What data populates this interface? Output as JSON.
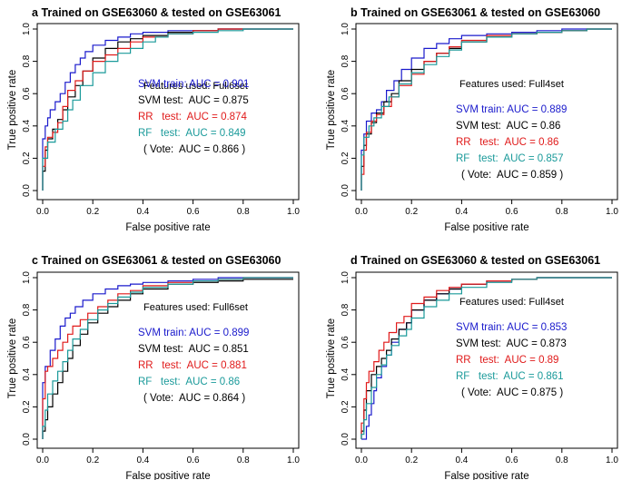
{
  "colors": {
    "svm_train": "#1a1acc",
    "svm_test": "#000000",
    "rr": "#e01a1a",
    "rf": "#1a9a9a",
    "vote": "#000000",
    "axis": "#000000"
  },
  "chart_data": [
    {
      "type": "line",
      "panel_label": "a",
      "title": "Trained on GSE63060 & tested on GSE63061",
      "xlabel": "False positive rate",
      "ylabel": "True positive rate",
      "xlim": [
        0,
        1
      ],
      "ylim": [
        0,
        1
      ],
      "ticks": [
        "0.0",
        "0.2",
        "0.4",
        "0.6",
        "0.8",
        "1.0"
      ],
      "features_text": "Features used: Full6set",
      "legend": [
        {
          "label": "SVM train: AUC = 0.901",
          "color": "svm_train"
        },
        {
          "label": "SVM test:  AUC = 0.875",
          "color": "svm_test"
        },
        {
          "label": "RR   test:  AUC = 0.874",
          "color": "rr"
        },
        {
          "label": "RF   test:  AUC = 0.849",
          "color": "rf"
        },
        {
          "label": "( Vote:  AUC = 0.866 )",
          "color": "vote"
        }
      ],
      "series": [
        {
          "name": "SVM train",
          "color": "svm_train",
          "x": [
            0,
            0,
            0.01,
            0.02,
            0.03,
            0.05,
            0.07,
            0.09,
            0.11,
            0.13,
            0.15,
            0.17,
            0.2,
            0.25,
            0.3,
            0.35,
            0.4,
            0.5,
            0.6,
            0.7,
            0.85,
            1
          ],
          "y": [
            0,
            0.2,
            0.32,
            0.4,
            0.45,
            0.5,
            0.55,
            0.6,
            0.67,
            0.73,
            0.78,
            0.82,
            0.86,
            0.9,
            0.93,
            0.95,
            0.97,
            0.98,
            0.99,
            0.99,
            1,
            1
          ]
        },
        {
          "name": "SVM test",
          "color": "svm_test",
          "x": [
            0,
            0.01,
            0.02,
            0.04,
            0.06,
            0.08,
            0.1,
            0.13,
            0.16,
            0.2,
            0.25,
            0.3,
            0.35,
            0.4,
            0.5,
            0.6,
            0.7,
            0.8,
            1
          ],
          "y": [
            0,
            0.12,
            0.25,
            0.32,
            0.38,
            0.44,
            0.5,
            0.58,
            0.65,
            0.74,
            0.82,
            0.88,
            0.92,
            0.94,
            0.96,
            0.98,
            0.99,
            1,
            1
          ]
        },
        {
          "name": "RR test",
          "color": "rr",
          "x": [
            0,
            0.01,
            0.02,
            0.04,
            0.06,
            0.08,
            0.1,
            0.13,
            0.16,
            0.2,
            0.25,
            0.3,
            0.35,
            0.4,
            0.5,
            0.6,
            0.7,
            0.8,
            1
          ],
          "y": [
            0,
            0.15,
            0.27,
            0.33,
            0.36,
            0.42,
            0.52,
            0.62,
            0.68,
            0.74,
            0.8,
            0.84,
            0.88,
            0.92,
            0.95,
            0.97,
            0.99,
            1,
            1
          ]
        },
        {
          "name": "RF test",
          "color": "rf",
          "x": [
            0,
            0,
            0.02,
            0.05,
            0.08,
            0.1,
            0.12,
            0.15,
            0.2,
            0.25,
            0.3,
            0.35,
            0.4,
            0.45,
            0.5,
            0.6,
            0.7,
            0.8,
            0.9,
            1
          ],
          "y": [
            0,
            0.05,
            0.2,
            0.3,
            0.38,
            0.43,
            0.5,
            0.56,
            0.65,
            0.73,
            0.8,
            0.85,
            0.88,
            0.92,
            0.95,
            0.97,
            0.98,
            0.99,
            1,
            1
          ]
        }
      ]
    },
    {
      "type": "line",
      "panel_label": "b",
      "title": "Trained on GSE63061 & tested on GSE63060",
      "xlabel": "False positive rate",
      "ylabel": "True positive rate",
      "xlim": [
        0,
        1
      ],
      "ylim": [
        0,
        1
      ],
      "ticks": [
        "0.0",
        "0.2",
        "0.4",
        "0.6",
        "0.8",
        "1.0"
      ],
      "features_text": "Features used: Full4set",
      "legend": [
        {
          "label": "SVM train: AUC = 0.889",
          "color": "svm_train"
        },
        {
          "label": "SVM test:  AUC = 0.86",
          "color": "svm_test"
        },
        {
          "label": "RR   test:  AUC = 0.86",
          "color": "rr"
        },
        {
          "label": "RF   test:  AUC = 0.857",
          "color": "rf"
        },
        {
          "label": "( Vote:  AUC = 0.859 )",
          "color": "vote"
        }
      ],
      "series": [
        {
          "name": "SVM train",
          "color": "svm_train",
          "x": [
            0,
            0,
            0.01,
            0.02,
            0.04,
            0.06,
            0.08,
            0.1,
            0.13,
            0.16,
            0.2,
            0.25,
            0.3,
            0.35,
            0.4,
            0.5,
            0.6,
            0.7,
            0.8,
            0.9,
            1
          ],
          "y": [
            0,
            0.12,
            0.25,
            0.35,
            0.43,
            0.48,
            0.5,
            0.55,
            0.62,
            0.68,
            0.75,
            0.82,
            0.88,
            0.91,
            0.94,
            0.96,
            0.97,
            0.98,
            0.99,
            1,
            1
          ]
        },
        {
          "name": "SVM test",
          "color": "svm_test",
          "x": [
            0,
            0.01,
            0.02,
            0.04,
            0.06,
            0.09,
            0.12,
            0.15,
            0.2,
            0.25,
            0.3,
            0.35,
            0.4,
            0.5,
            0.6,
            0.7,
            0.8,
            0.9,
            1
          ],
          "y": [
            0,
            0.15,
            0.28,
            0.35,
            0.42,
            0.48,
            0.55,
            0.6,
            0.68,
            0.75,
            0.8,
            0.85,
            0.88,
            0.92,
            0.95,
            0.97,
            0.98,
            0.99,
            1
          ]
        },
        {
          "name": "RR test",
          "color": "rr",
          "x": [
            0,
            0.01,
            0.02,
            0.04,
            0.06,
            0.09,
            0.12,
            0.15,
            0.2,
            0.25,
            0.3,
            0.35,
            0.4,
            0.5,
            0.6,
            0.7,
            0.8,
            0.9,
            1
          ],
          "y": [
            0,
            0.1,
            0.25,
            0.36,
            0.43,
            0.47,
            0.52,
            0.58,
            0.65,
            0.72,
            0.8,
            0.85,
            0.89,
            0.93,
            0.96,
            0.97,
            0.98,
            0.99,
            1
          ]
        },
        {
          "name": "RF test",
          "color": "rf",
          "x": [
            0,
            0,
            0.01,
            0.03,
            0.05,
            0.08,
            0.11,
            0.15,
            0.2,
            0.25,
            0.3,
            0.35,
            0.4,
            0.5,
            0.6,
            0.7,
            0.8,
            0.9,
            1
          ],
          "y": [
            0,
            0.05,
            0.22,
            0.33,
            0.4,
            0.45,
            0.52,
            0.58,
            0.66,
            0.73,
            0.78,
            0.83,
            0.87,
            0.92,
            0.95,
            0.97,
            0.98,
            0.99,
            1
          ]
        }
      ]
    },
    {
      "type": "line",
      "panel_label": "c",
      "title": "Trained on GSE63061 & tested on GSE63060",
      "xlabel": "False positive rate",
      "ylabel": "True positive rate",
      "xlim": [
        0,
        1
      ],
      "ylim": [
        0,
        1
      ],
      "ticks": [
        "0.0",
        "0.2",
        "0.4",
        "0.6",
        "0.8",
        "1.0"
      ],
      "features_text": "Features used: Full6set",
      "legend": [
        {
          "label": "SVM train: AUC = 0.899",
          "color": "svm_train"
        },
        {
          "label": "SVM test:  AUC = 0.851",
          "color": "svm_test"
        },
        {
          "label": "RR   test:  AUC = 0.881",
          "color": "rr"
        },
        {
          "label": "RF   test:  AUC = 0.86",
          "color": "rf"
        },
        {
          "label": "( Vote:  AUC = 0.864 )",
          "color": "vote"
        }
      ],
      "series": [
        {
          "name": "SVM train",
          "color": "svm_train",
          "x": [
            0,
            0,
            0.01,
            0.03,
            0.05,
            0.07,
            0.09,
            0.11,
            0.13,
            0.16,
            0.2,
            0.25,
            0.3,
            0.35,
            0.4,
            0.5,
            0.6,
            0.7,
            0.8,
            1
          ],
          "y": [
            0,
            0.2,
            0.35,
            0.45,
            0.55,
            0.62,
            0.7,
            0.75,
            0.78,
            0.82,
            0.86,
            0.9,
            0.93,
            0.95,
            0.96,
            0.97,
            0.98,
            0.99,
            1,
            1
          ]
        },
        {
          "name": "SVM test",
          "color": "svm_test",
          "x": [
            0,
            0.01,
            0.02,
            0.04,
            0.06,
            0.08,
            0.1,
            0.12,
            0.15,
            0.18,
            0.22,
            0.26,
            0.3,
            0.35,
            0.4,
            0.5,
            0.6,
            0.7,
            0.8,
            1
          ],
          "y": [
            0,
            0.05,
            0.12,
            0.2,
            0.28,
            0.35,
            0.42,
            0.5,
            0.58,
            0.65,
            0.72,
            0.78,
            0.82,
            0.86,
            0.9,
            0.93,
            0.96,
            0.97,
            0.98,
            0.99
          ]
        },
        {
          "name": "RR test",
          "color": "rr",
          "x": [
            0,
            0.01,
            0.02,
            0.04,
            0.06,
            0.08,
            0.1,
            0.12,
            0.15,
            0.18,
            0.22,
            0.26,
            0.3,
            0.35,
            0.4,
            0.5,
            0.6,
            0.7,
            0.8,
            1
          ],
          "y": [
            0,
            0.25,
            0.42,
            0.45,
            0.5,
            0.55,
            0.6,
            0.65,
            0.7,
            0.74,
            0.78,
            0.82,
            0.86,
            0.9,
            0.92,
            0.95,
            0.97,
            0.98,
            0.99,
            1
          ]
        },
        {
          "name": "RF test",
          "color": "rf",
          "x": [
            0,
            0.01,
            0.02,
            0.04,
            0.06,
            0.08,
            0.1,
            0.12,
            0.15,
            0.18,
            0.22,
            0.26,
            0.3,
            0.35,
            0.4,
            0.5,
            0.6,
            0.7,
            0.8,
            1
          ],
          "y": [
            0,
            0.08,
            0.18,
            0.28,
            0.36,
            0.42,
            0.48,
            0.55,
            0.62,
            0.68,
            0.74,
            0.8,
            0.84,
            0.88,
            0.91,
            0.94,
            0.96,
            0.98,
            0.99,
            1
          ]
        }
      ]
    },
    {
      "type": "line",
      "panel_label": "d",
      "title": "Trained on GSE63060 & tested on GSE63061",
      "xlabel": "False positive rate",
      "ylabel": "True positive rate",
      "xlim": [
        0,
        1
      ],
      "ylim": [
        0,
        1
      ],
      "ticks": [
        "0.0",
        "0.2",
        "0.4",
        "0.6",
        "0.8",
        "1.0"
      ],
      "features_text": "Features used: Full4set",
      "legend": [
        {
          "label": "SVM train: AUC = 0.853",
          "color": "svm_train"
        },
        {
          "label": "SVM test:  AUC = 0.873",
          "color": "svm_test"
        },
        {
          "label": "RR   test:  AUC = 0.89",
          "color": "rr"
        },
        {
          "label": "RF   test:  AUC = 0.861",
          "color": "rf"
        },
        {
          "label": "( Vote:  AUC = 0.875 )",
          "color": "vote"
        }
      ],
      "series": [
        {
          "name": "SVM train",
          "color": "svm_train",
          "x": [
            0,
            0.02,
            0.03,
            0.04,
            0.05,
            0.06,
            0.08,
            0.1,
            0.12,
            0.15,
            0.18,
            0.2,
            0.25,
            0.3,
            0.35,
            0.4,
            0.5,
            0.6,
            0.7,
            1
          ],
          "y": [
            0,
            0,
            0.08,
            0.15,
            0.22,
            0.3,
            0.38,
            0.45,
            0.52,
            0.6,
            0.68,
            0.72,
            0.8,
            0.86,
            0.9,
            0.93,
            0.96,
            0.98,
            0.99,
            1
          ]
        },
        {
          "name": "SVM test",
          "color": "svm_test",
          "x": [
            0,
            0.01,
            0.02,
            0.04,
            0.06,
            0.08,
            0.1,
            0.12,
            0.15,
            0.18,
            0.2,
            0.25,
            0.3,
            0.35,
            0.4,
            0.5,
            0.6,
            0.7,
            1
          ],
          "y": [
            0,
            0.05,
            0.18,
            0.3,
            0.4,
            0.45,
            0.5,
            0.55,
            0.62,
            0.68,
            0.72,
            0.8,
            0.86,
            0.9,
            0.93,
            0.96,
            0.98,
            0.99,
            1
          ]
        },
        {
          "name": "RR test",
          "color": "rr",
          "x": [
            0,
            0.01,
            0.02,
            0.03,
            0.05,
            0.07,
            0.09,
            0.11,
            0.14,
            0.17,
            0.2,
            0.25,
            0.3,
            0.35,
            0.4,
            0.5,
            0.6,
            0.7,
            1
          ],
          "y": [
            0,
            0.1,
            0.25,
            0.35,
            0.42,
            0.48,
            0.55,
            0.6,
            0.66,
            0.72,
            0.76,
            0.84,
            0.88,
            0.92,
            0.94,
            0.96,
            0.98,
            0.99,
            1
          ]
        },
        {
          "name": "RF test",
          "color": "rf",
          "x": [
            0,
            0.01,
            0.02,
            0.04,
            0.06,
            0.08,
            0.1,
            0.12,
            0.15,
            0.18,
            0.2,
            0.25,
            0.3,
            0.35,
            0.4,
            0.5,
            0.6,
            0.7,
            1
          ],
          "y": [
            0,
            0.03,
            0.12,
            0.22,
            0.32,
            0.4,
            0.46,
            0.52,
            0.58,
            0.64,
            0.68,
            0.75,
            0.82,
            0.86,
            0.9,
            0.94,
            0.97,
            0.99,
            1
          ]
        }
      ]
    }
  ]
}
